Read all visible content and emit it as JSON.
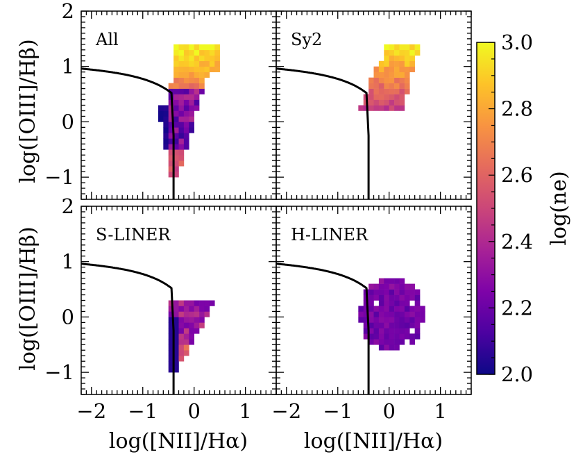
{
  "chart_data": {
    "type": "heatmap",
    "xlabel": "log([NII]/Hα)",
    "ylabel": "log([OIII]/Hβ)",
    "xlim": [
      -2.2,
      1.6
    ],
    "ylim": [
      -1.4,
      2.0
    ],
    "xticks": [
      -2,
      -1,
      0,
      1
    ],
    "xtick_labels": [
      "−2",
      "−1",
      "0",
      "1"
    ],
    "yticks": [
      -1,
      0,
      1,
      2
    ],
    "ytick_labels": [
      "−1",
      "0",
      "1",
      "2"
    ],
    "colorbar": {
      "label": "log(n_e)",
      "label_text": "log(ne)",
      "range": [
        2.0,
        3.0
      ],
      "ticks": [
        2.0,
        2.2,
        2.4,
        2.6,
        2.8,
        3.0
      ],
      "tick_labels": [
        "2.0",
        "2.2",
        "2.4",
        "2.6",
        "2.8",
        "3.0"
      ],
      "colormap": "plasma"
    },
    "demarcation_curve": "log([OIII]/Hβ) = 0.61 / (log([NII]/Hα) − 0.47) + 1.19, with a vertical drop at log([NII]/Hα) ≈ −0.4",
    "panels": [
      {
        "name": "All",
        "label": "All",
        "region": "all",
        "scale": 1.0
      },
      {
        "name": "Sy2",
        "label": "Sy2",
        "region": "sy2",
        "scale": 1.0
      },
      {
        "name": "S-LINER",
        "label": "S-LINER",
        "region": "sliner",
        "scale": 1.0
      },
      {
        "name": "H-LINER",
        "label": "H-LINER",
        "region": "hliner",
        "scale": 1.0
      }
    ]
  }
}
